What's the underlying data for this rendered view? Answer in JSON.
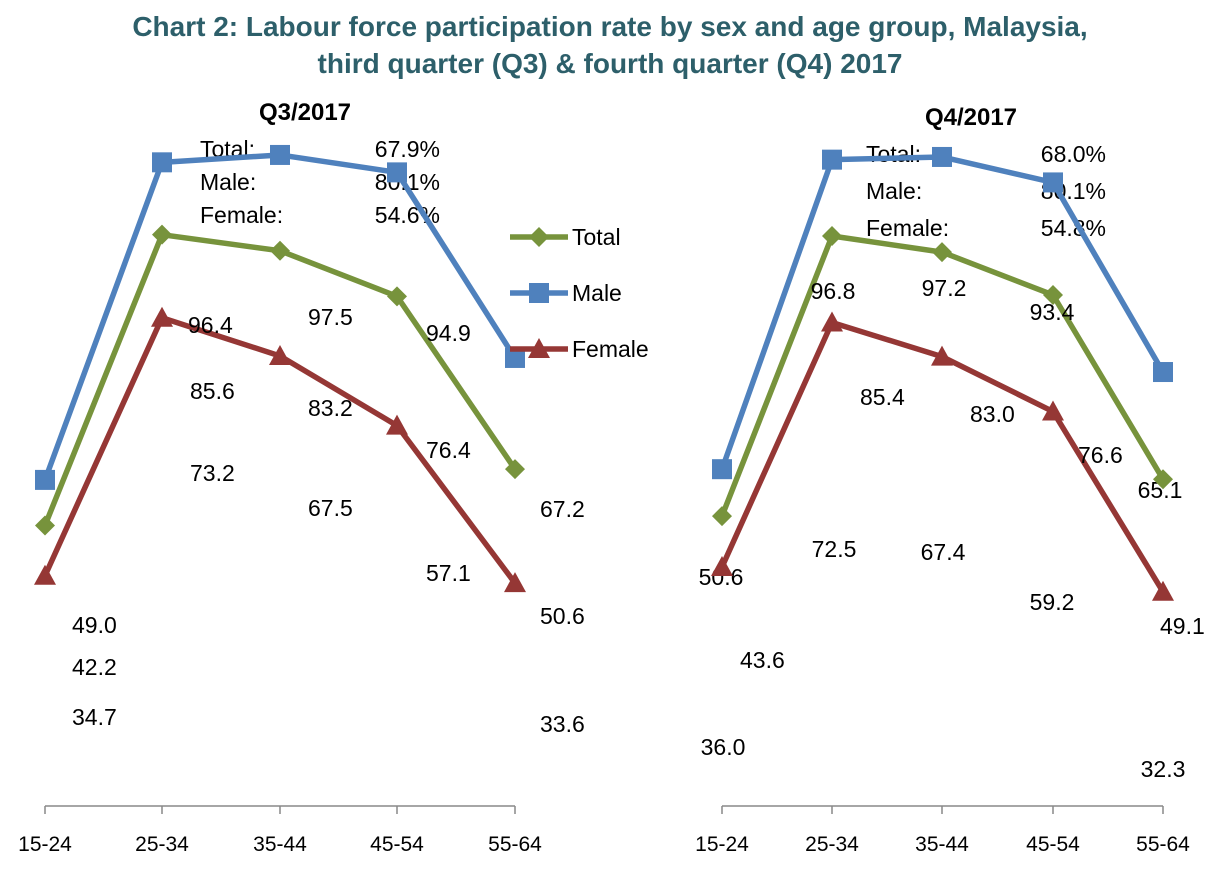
{
  "title": {
    "line1": "Chart 2: Labour force participation rate by sex and age group, Malaysia,",
    "line2": "third quarter (Q3) & fourth quarter (Q4) 2017"
  },
  "colors": {
    "title": "#2d5f6a",
    "total": "#77933c",
    "male": "#4f81bd",
    "female": "#953735"
  },
  "legend": [
    "Total",
    "Male",
    "Female"
  ],
  "chart_data": [
    {
      "type": "line",
      "title": "Q3/2017",
      "categories": [
        "15-24",
        "25-34",
        "35-44",
        "45-54",
        "55-64"
      ],
      "series": [
        {
          "name": "Total",
          "values": [
            42.2,
            85.6,
            83.2,
            76.4,
            50.6
          ]
        },
        {
          "name": "Male",
          "values": [
            49.0,
            96.4,
            97.5,
            94.9,
            67.2
          ]
        },
        {
          "name": "Female",
          "values": [
            34.7,
            73.2,
            67.5,
            57.1,
            33.6
          ]
        }
      ],
      "summary": [
        {
          "label": "Total:",
          "value": "67.9%"
        },
        {
          "label": "Male:",
          "value": "80.1%"
        },
        {
          "label": "Female:",
          "value": "54.6%"
        }
      ],
      "ylim": [
        20,
        110
      ]
    },
    {
      "type": "line",
      "title": "Q4/2017",
      "categories": [
        "15-24",
        "25-34",
        "35-44",
        "45-54",
        "55-64"
      ],
      "series": [
        {
          "name": "Total",
          "values": [
            43.6,
            85.4,
            83.0,
            76.6,
            49.1
          ]
        },
        {
          "name": "Male",
          "values": [
            50.6,
            96.8,
            97.2,
            93.4,
            65.1
          ]
        },
        {
          "name": "Female",
          "values": [
            36.0,
            72.5,
            67.4,
            59.2,
            32.3
          ]
        }
      ],
      "summary": [
        {
          "label": "Total:",
          "value": "68.0%"
        },
        {
          "label": "Male:",
          "value": "80.1%"
        },
        {
          "label": "Female:",
          "value": "54.8%"
        }
      ],
      "ylim": [
        20,
        110
      ]
    }
  ]
}
